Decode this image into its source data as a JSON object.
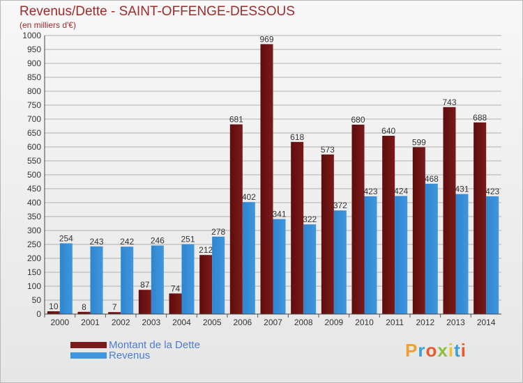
{
  "header": {
    "title": "Revenus/Dette - SAINT-OFFENGE-DESSOUS",
    "subtitle": "(en milliers d'€)"
  },
  "colors": {
    "dette": "#7a1a1a",
    "revenus": "#3f96de",
    "title": "#9e2a2a",
    "legend_text": "#4b7bd6",
    "gridline": "#b0b0b0"
  },
  "chart_data": {
    "type": "bar",
    "categories": [
      "2000",
      "2001",
      "2002",
      "2003",
      "2004",
      "2005",
      "2006",
      "2007",
      "2008",
      "2009",
      "2010",
      "2011",
      "2012",
      "2013",
      "2014"
    ],
    "series": [
      {
        "name": "Montant de la Dette",
        "values": [
          10,
          8,
          7,
          87,
          74,
          212,
          681,
          969,
          618,
          573,
          680,
          640,
          599,
          743,
          688
        ]
      },
      {
        "name": "Revenus",
        "values": [
          254,
          243,
          242,
          246,
          251,
          278,
          402,
          341,
          322,
          372,
          423,
          424,
          468,
          431,
          423
        ]
      }
    ],
    "ylim": [
      0,
      1000
    ],
    "yticks": [
      0,
      50,
      100,
      150,
      200,
      250,
      300,
      350,
      400,
      450,
      500,
      550,
      600,
      650,
      700,
      750,
      800,
      850,
      900,
      950,
      1000
    ],
    "grid": true,
    "legend": "bottom-left"
  },
  "legend": {
    "items": [
      {
        "label": "Montant de la Dette"
      },
      {
        "label": "Revenus"
      }
    ]
  },
  "logo": {
    "letters": [
      "P",
      "r",
      "o",
      "x",
      "i",
      "t",
      "i"
    ],
    "colors": [
      "#f0a030",
      "#3aa0d8",
      "#e85a2a",
      "#8cc03c",
      "#f0c030",
      "#3aa0d8",
      "#e85a2a"
    ]
  }
}
